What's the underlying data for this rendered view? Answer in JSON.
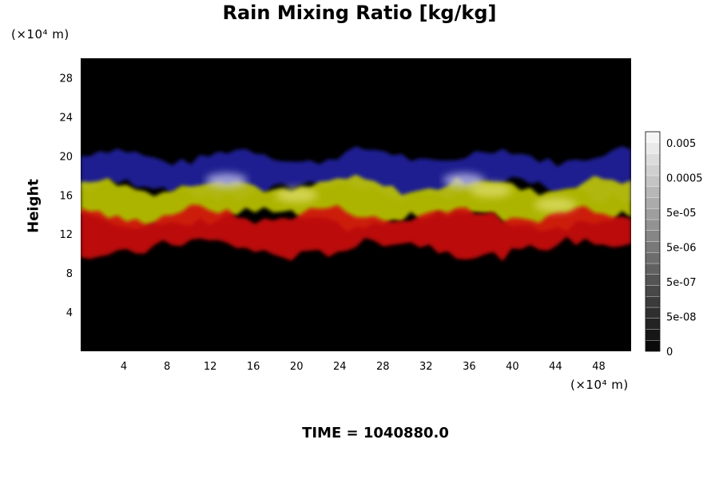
{
  "chart_data": {
    "type": "heatmap",
    "title": "Rain Mixing Ratio [kg/kg]",
    "ylabel": "Height",
    "xlabel": "",
    "y_unit_label": "(×10⁴ m)",
    "x_unit_label": "(×10⁴ m)",
    "xticks": [
      4,
      8,
      12,
      16,
      20,
      24,
      28,
      32,
      36,
      40,
      44,
      48
    ],
    "yticks": [
      4,
      8,
      12,
      16,
      20,
      24,
      28
    ],
    "xlim": [
      0,
      51
    ],
    "ylim": [
      0,
      30
    ],
    "colorbar": {
      "labels": [
        "0.005",
        "0.0005",
        "5e-05",
        "5e-06",
        "5e-07",
        "5e-08",
        "0"
      ],
      "levels": 20
    },
    "layers": [
      {
        "color": "#2020a0",
        "y_range": [
          16.5,
          20
        ]
      },
      {
        "color": "#c0c800",
        "y_range": [
          13.5,
          17
        ]
      },
      {
        "color": "#d01010",
        "y_range": [
          10.5,
          14
        ]
      }
    ],
    "background_color": "#000000",
    "time_label": "TIME = 1040880.0"
  }
}
